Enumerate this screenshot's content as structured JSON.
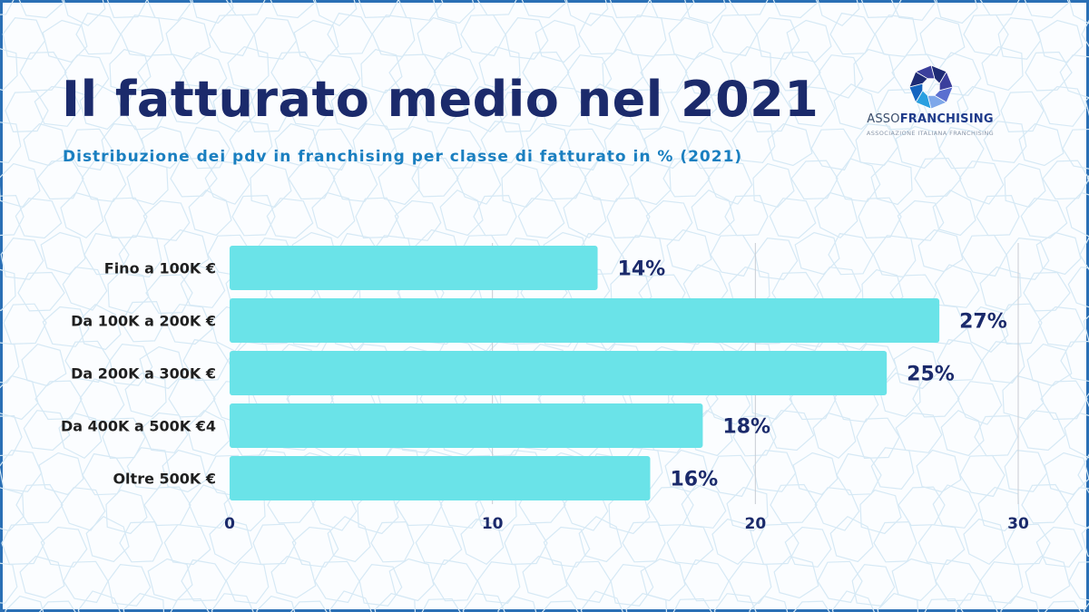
{
  "title": "Il fatturato medio nel 2021",
  "subtitle": "Distribuzione dei pdv in franchising per classe di fatturato in % (2021)",
  "logo": {
    "name_light": "ASSO",
    "name_bold": "FRANCHISING",
    "tagline": "ASSOCIAZIONE ITALIANA FRANCHISING",
    "mark_icon": "octagon-aperture-icon",
    "colors": [
      "#1e2b74",
      "#3b3f9c",
      "#5a6fd0",
      "#7fa8ea",
      "#2a9fe0",
      "#1565c0"
    ]
  },
  "chart_data": {
    "type": "bar",
    "orientation": "horizontal",
    "categories": [
      "Fino a 100K €",
      "Da 100K a 200K €",
      "Da 200K a 300K €",
      "Da 400K a 500K €4",
      "Oltre 500K €"
    ],
    "values": [
      14,
      27,
      25,
      18,
      16
    ],
    "value_labels": [
      "14%",
      "27%",
      "25%",
      "18%",
      "16%"
    ],
    "xlim": [
      0,
      30
    ],
    "xticks": [
      0,
      10,
      20,
      30
    ],
    "xtick_labels": [
      "0",
      "10",
      "20",
      "30"
    ],
    "grid": "vertical",
    "bar_color": "#6ae3e8",
    "label_color": "#1b2a6b",
    "xlabel": "",
    "ylabel": ""
  }
}
